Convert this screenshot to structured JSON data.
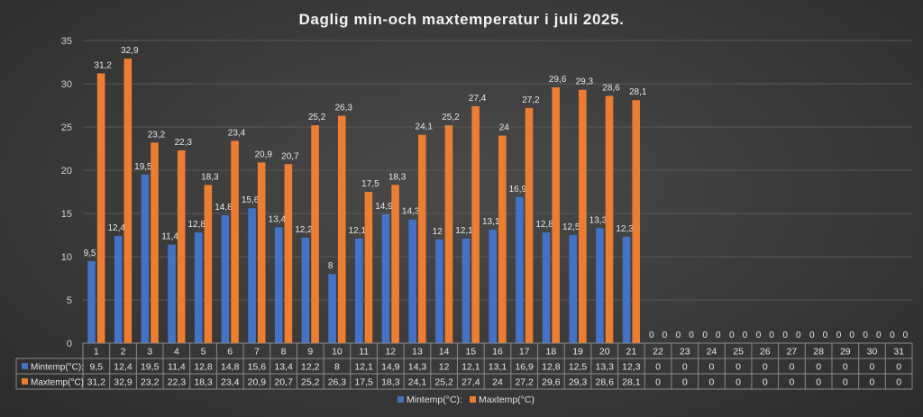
{
  "chart_data": {
    "type": "bar",
    "title": "Daglig min-och maxtemperatur i juli 2025.",
    "categories": [
      "1",
      "2",
      "3",
      "4",
      "5",
      "6",
      "7",
      "8",
      "9",
      "10",
      "11",
      "12",
      "13",
      "14",
      "15",
      "16",
      "17",
      "18",
      "19",
      "20",
      "21",
      "22",
      "23",
      "24",
      "25",
      "26",
      "27",
      "28",
      "29",
      "30",
      "31"
    ],
    "series": [
      {
        "name": "Mintemp(°C):",
        "color": "#4472c4",
        "values": [
          9.5,
          12.4,
          19.5,
          11.4,
          12.8,
          14.8,
          15.6,
          13.4,
          12.2,
          8,
          12.1,
          14.9,
          14.3,
          12,
          12.1,
          13.1,
          16.9,
          12.8,
          12.5,
          13.3,
          12.3,
          0,
          0,
          0,
          0,
          0,
          0,
          0,
          0,
          0,
          0
        ],
        "labels": [
          "9,5",
          "12,4",
          "19,5",
          "11,4",
          "12,8",
          "14,8",
          "15,6",
          "13,4",
          "12,2",
          "8",
          "12,1",
          "14,9",
          "14,3",
          "12",
          "12,1",
          "13,1",
          "16,9",
          "12,8",
          "12,5",
          "13,3",
          "12,3",
          "0",
          "0",
          "0",
          "0",
          "0",
          "0",
          "0",
          "0",
          "0",
          "0"
        ]
      },
      {
        "name": "Maxtemp(°C)",
        "color": "#ed7d31",
        "values": [
          31.2,
          32.9,
          23.2,
          22.3,
          18.3,
          23.4,
          20.9,
          20.7,
          25.2,
          26.3,
          17.5,
          18.3,
          24.1,
          25.2,
          27.4,
          24,
          27.2,
          29.6,
          29.3,
          28.6,
          28.1,
          0,
          0,
          0,
          0,
          0,
          0,
          0,
          0,
          0,
          0
        ],
        "labels": [
          "31,2",
          "32,9",
          "23,2",
          "22,3",
          "18,3",
          "23,4",
          "20,9",
          "20,7",
          "25,2",
          "26,3",
          "17,5",
          "18,3",
          "24,1",
          "25,2",
          "27,4",
          "24",
          "27,2",
          "29,6",
          "29,3",
          "28,6",
          "28,1",
          "0",
          "0",
          "0",
          "0",
          "0",
          "0",
          "0",
          "0",
          "0",
          "0"
        ]
      }
    ],
    "yticks": [
      "0",
      "5",
      "10",
      "15",
      "20",
      "25",
      "30",
      "35"
    ],
    "ylim": [
      0,
      35
    ],
    "grid": true,
    "legend": "bottom",
    "data_table": true
  }
}
